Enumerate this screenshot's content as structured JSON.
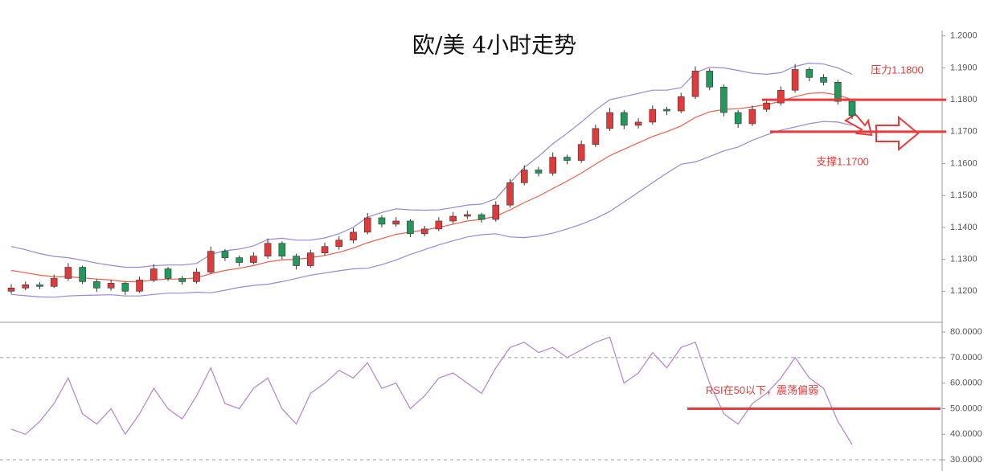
{
  "chart_data": [
    {
      "type": "candlestick",
      "title": "欧/美 4小时走势",
      "up_color": "#e03b3b",
      "down_color": "#1f9a5a",
      "ylim": [
        1.1105,
        1.2012
      ],
      "yticks": [
        {
          "value": 1.12,
          "label": "1.1200"
        },
        {
          "value": 1.13,
          "label": "1.1300"
        },
        {
          "value": 1.14,
          "label": "1.1400"
        },
        {
          "value": 1.15,
          "label": "1.1500"
        },
        {
          "value": 1.16,
          "label": "1.1600"
        },
        {
          "value": 1.17,
          "label": "1.1700"
        },
        {
          "value": 1.18,
          "label": "1.1800"
        },
        {
          "value": 1.19,
          "label": "1.1900"
        },
        {
          "value": 1.2,
          "label": "1.2000"
        }
      ],
      "candles": [
        [
          1.12,
          1.1222,
          1.1192,
          1.121
        ],
        [
          1.121,
          1.123,
          1.1203,
          1.122
        ],
        [
          1.122,
          1.1228,
          1.1206,
          1.1215
        ],
        [
          1.1215,
          1.1252,
          1.121,
          1.124
        ],
        [
          1.124,
          1.1288,
          1.1232,
          1.1275
        ],
        [
          1.1275,
          1.128,
          1.1222,
          1.123
        ],
        [
          1.123,
          1.1238,
          1.1198,
          1.121
        ],
        [
          1.121,
          1.1236,
          1.1202,
          1.1225
        ],
        [
          1.1225,
          1.123,
          1.1188,
          1.12
        ],
        [
          1.12,
          1.1246,
          1.1195,
          1.1235
        ],
        [
          1.1235,
          1.1285,
          1.1228,
          1.127
        ],
        [
          1.127,
          1.1276,
          1.1232,
          1.124
        ],
        [
          1.124,
          1.1248,
          1.122,
          1.123
        ],
        [
          1.123,
          1.1272,
          1.1224,
          1.126
        ],
        [
          1.126,
          1.134,
          1.1255,
          1.1325
        ],
        [
          1.1325,
          1.1332,
          1.1295,
          1.1305
        ],
        [
          1.1305,
          1.1312,
          1.1278,
          1.129
        ],
        [
          1.129,
          1.1322,
          1.1284,
          1.131
        ],
        [
          1.131,
          1.1365,
          1.1302,
          1.135
        ],
        [
          1.135,
          1.1356,
          1.13,
          1.131
        ],
        [
          1.131,
          1.1318,
          1.1268,
          1.128
        ],
        [
          1.128,
          1.133,
          1.1274,
          1.132
        ],
        [
          1.132,
          1.1352,
          1.1312,
          1.134
        ],
        [
          1.134,
          1.1372,
          1.133,
          1.136
        ],
        [
          1.136,
          1.1398,
          1.135,
          1.1385
        ],
        [
          1.1385,
          1.1445,
          1.1378,
          1.143
        ],
        [
          1.143,
          1.1438,
          1.14,
          1.141
        ],
        [
          1.141,
          1.1432,
          1.1402,
          1.142
        ],
        [
          1.142,
          1.1426,
          1.137,
          1.138
        ],
        [
          1.138,
          1.1405,
          1.1372,
          1.1395
        ],
        [
          1.1395,
          1.1432,
          1.1388,
          1.142
        ],
        [
          1.142,
          1.1448,
          1.1412,
          1.1435
        ],
        [
          1.1435,
          1.1452,
          1.1426,
          1.144
        ],
        [
          1.144,
          1.1446,
          1.1415,
          1.1425
        ],
        [
          1.1425,
          1.1482,
          1.1418,
          1.147
        ],
        [
          1.147,
          1.1552,
          1.1462,
          1.154
        ],
        [
          1.154,
          1.1595,
          1.1532,
          1.158
        ],
        [
          1.158,
          1.159,
          1.156,
          1.157
        ],
        [
          1.157,
          1.1635,
          1.1562,
          1.162
        ],
        [
          1.162,
          1.1628,
          1.1598,
          1.161
        ],
        [
          1.161,
          1.1672,
          1.1602,
          1.166
        ],
        [
          1.166,
          1.1722,
          1.1652,
          1.171
        ],
        [
          1.171,
          1.1775,
          1.1702,
          1.176
        ],
        [
          1.176,
          1.1768,
          1.1708,
          1.172
        ],
        [
          1.172,
          1.1742,
          1.171,
          1.173
        ],
        [
          1.173,
          1.1782,
          1.1722,
          1.177
        ],
        [
          1.177,
          1.1778,
          1.1752,
          1.1765
        ],
        [
          1.1765,
          1.1822,
          1.1758,
          1.181
        ],
        [
          1.181,
          1.1905,
          1.1802,
          1.189
        ],
        [
          1.189,
          1.1898,
          1.183,
          1.184
        ],
        [
          1.184,
          1.1848,
          1.1748,
          1.176
        ],
        [
          1.176,
          1.1768,
          1.1712,
          1.1725
        ],
        [
          1.1725,
          1.1782,
          1.1718,
          1.177
        ],
        [
          1.177,
          1.1802,
          1.1762,
          1.179
        ],
        [
          1.179,
          1.1842,
          1.1782,
          1.183
        ],
        [
          1.183,
          1.1912,
          1.1822,
          1.1895
        ],
        [
          1.1895,
          1.1902,
          1.1858,
          1.187
        ],
        [
          1.187,
          1.188,
          1.1845,
          1.1855
        ],
        [
          1.1855,
          1.1862,
          1.1785,
          1.1795
        ],
        [
          1.1795,
          1.1802,
          1.174,
          1.175
        ]
      ],
      "bands": [
        {
          "color": "#9a86d8",
          "values": [
            1.134,
            1.133,
            1.1318,
            1.1309,
            1.1305,
            1.1297,
            1.1288,
            1.1281,
            1.1275,
            1.1275,
            1.128,
            1.1282,
            1.1282,
            1.1287,
            1.1315,
            1.1327,
            1.1332,
            1.1342,
            1.1362,
            1.1366,
            1.136,
            1.136,
            1.1367,
            1.138,
            1.14,
            1.1432,
            1.1447,
            1.1458,
            1.1455,
            1.1454,
            1.1455,
            1.1462,
            1.147,
            1.1473,
            1.149,
            1.154,
            1.1588,
            1.1623,
            1.1662,
            1.1695,
            1.173,
            1.1768,
            1.18,
            1.181,
            1.182,
            1.183,
            1.183,
            1.1838,
            1.1885,
            1.1902,
            1.19,
            1.1892,
            1.1883,
            1.188,
            1.1885,
            1.1905,
            1.1915,
            1.1912,
            1.19,
            1.188
          ]
        },
        {
          "color": "#e8604c",
          "values": [
            1.1265,
            1.1258,
            1.125,
            1.1245,
            1.1245,
            1.1242,
            1.1238,
            1.1235,
            1.123,
            1.123,
            1.1235,
            1.1238,
            1.1238,
            1.1242,
            1.1255,
            1.1265,
            1.1272,
            1.128,
            1.1292,
            1.1298,
            1.13,
            1.1305,
            1.1312,
            1.1322,
            1.1335,
            1.1352,
            1.1365,
            1.1378,
            1.1385,
            1.1392,
            1.14,
            1.141,
            1.142,
            1.1425,
            1.1435,
            1.1455,
            1.1478,
            1.1498,
            1.1522,
            1.1545,
            1.157,
            1.1598,
            1.1625,
            1.1645,
            1.1665,
            1.1685,
            1.17,
            1.1718,
            1.1745,
            1.1762,
            1.177,
            1.1772,
            1.1778,
            1.1785,
            1.1795,
            1.181,
            1.182,
            1.1822,
            1.1815,
            1.18
          ]
        },
        {
          "color": "#9a86d8",
          "values": [
            1.119,
            1.1186,
            1.1182,
            1.1181,
            1.1185,
            1.1187,
            1.1188,
            1.1189,
            1.1185,
            1.1185,
            1.119,
            1.1194,
            1.1194,
            1.1197,
            1.1195,
            1.1203,
            1.1212,
            1.1218,
            1.1222,
            1.123,
            1.124,
            1.125,
            1.1257,
            1.1264,
            1.127,
            1.1272,
            1.1283,
            1.1298,
            1.1315,
            1.133,
            1.1345,
            1.1358,
            1.137,
            1.1377,
            1.138,
            1.137,
            1.1368,
            1.1373,
            1.1382,
            1.1395,
            1.141,
            1.1428,
            1.145,
            1.148,
            1.151,
            1.154,
            1.157,
            1.1598,
            1.1605,
            1.1622,
            1.164,
            1.1652,
            1.1673,
            1.169,
            1.1705,
            1.1715,
            1.1725,
            1.1732,
            1.173,
            1.172
          ]
        }
      ],
      "levels": [
        1.18,
        1.17
      ],
      "level_color": "#e83a3a",
      "annotations": [
        "压力1.1800",
        "支撑1.1700"
      ]
    },
    {
      "type": "line",
      "color": "#b88ad0",
      "ylim": [
        27.5,
        83.5
      ],
      "yticks": [
        {
          "value": 30,
          "label": "30.0000"
        },
        {
          "value": 40,
          "label": "40.0000"
        },
        {
          "value": 50,
          "label": "50.0000"
        },
        {
          "value": 60,
          "label": "60.0000"
        },
        {
          "value": 70,
          "label": "70.0000"
        },
        {
          "value": 80,
          "label": "80.0000"
        }
      ],
      "values": [
        42,
        40,
        45,
        52,
        62,
        48,
        44,
        50,
        40,
        48,
        58,
        50,
        46,
        55,
        66,
        52,
        50,
        58,
        62,
        50,
        44,
        56,
        60,
        65,
        62,
        68,
        58,
        60,
        50,
        55,
        62,
        64,
        60,
        56,
        66,
        74,
        76,
        72,
        74,
        70,
        73,
        76,
        78,
        60,
        64,
        72,
        66,
        74,
        76,
        60,
        48,
        44,
        52,
        56,
        62,
        70,
        62,
        58,
        45,
        36
      ],
      "dashed": [
        70,
        30
      ],
      "levels": [
        50
      ],
      "level_color": "#e83a3a",
      "annotation": "RSI在50以下，震荡偏弱"
    }
  ]
}
